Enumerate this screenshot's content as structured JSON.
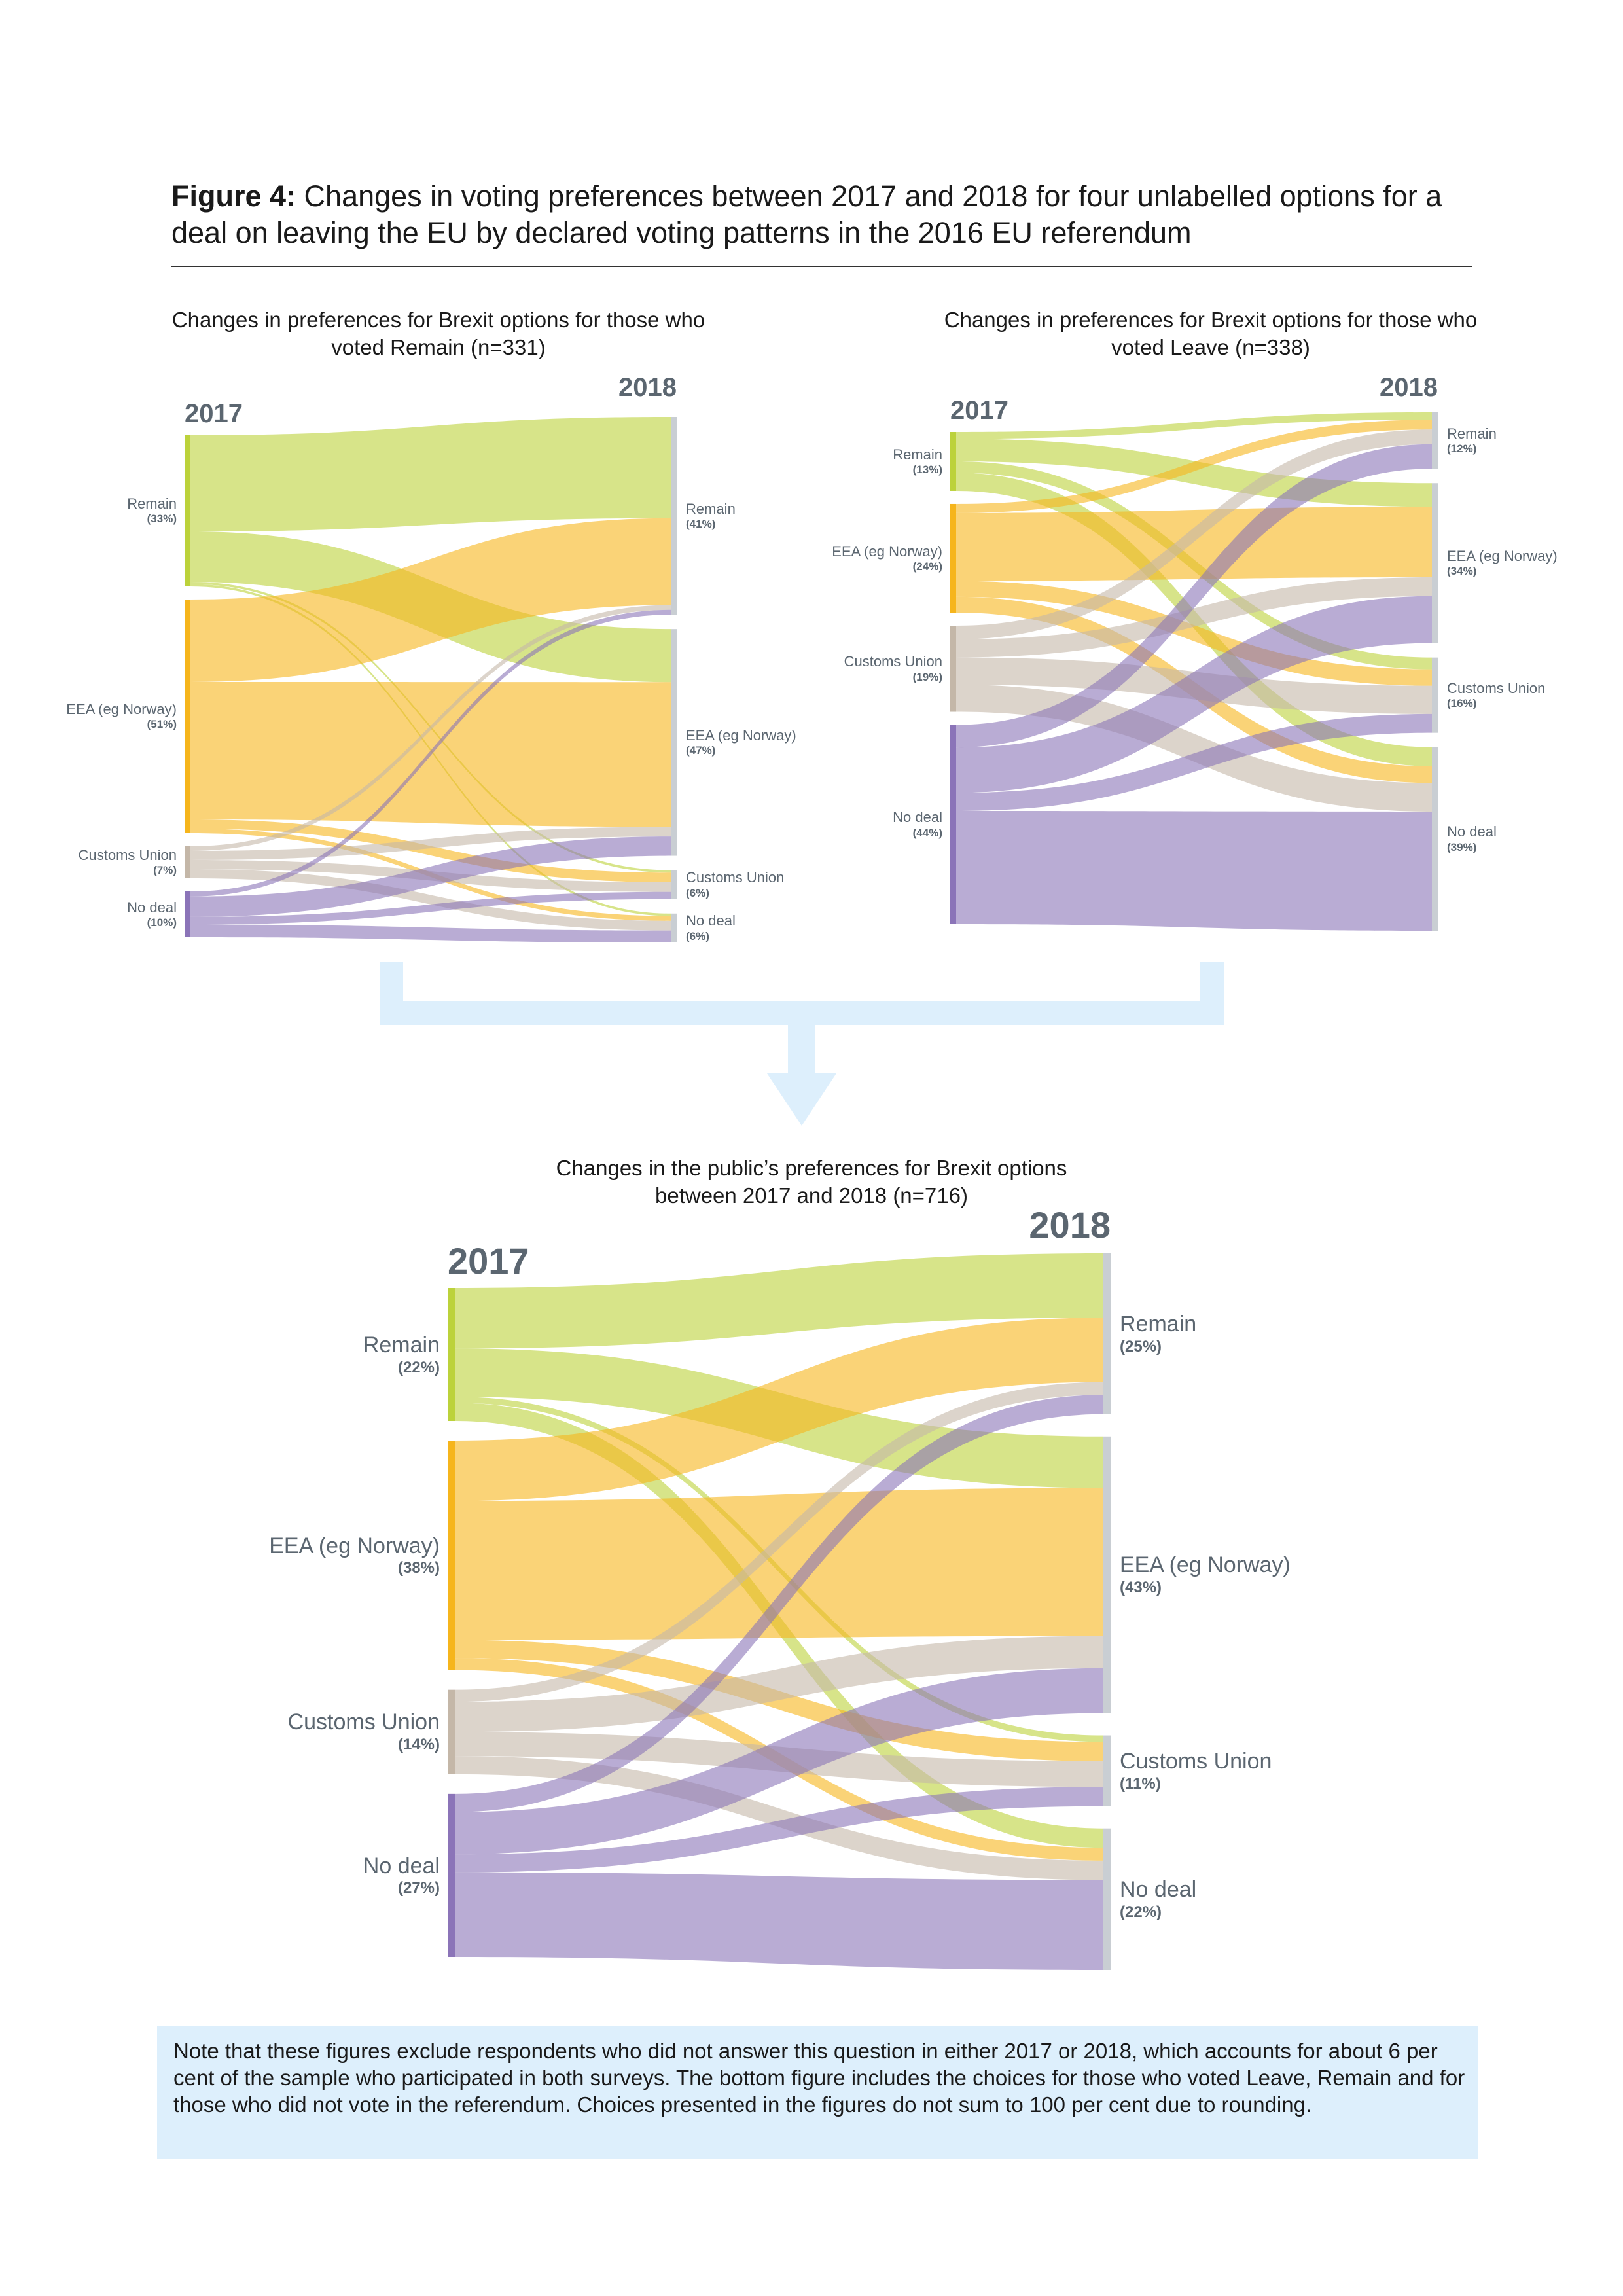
{
  "figure": {
    "label": "Figure 4:",
    "title": "Changes in voting preferences between 2017 and 2018 for four unlabelled options for a deal on leaving the EU by declared voting patterns in the 2016 EU referendum"
  },
  "note": "Note that these figures exclude respondents who did not answer this question in either 2017 or 2018, which accounts for about 6 per cent of the sample who participated in both surveys. The bottom figure includes the choices for those who voted Leave, Remain and for those who did not vote in the referendum. Choices presented in the figures do not sum to 100 per cent due to rounding.",
  "colors": {
    "Remain": "#bcd23b",
    "EEA (eg Norway)": "#f6b51c",
    "Customs Union": "#c4b7a8",
    "No deal": "#8b74b8",
    "target_bar": "#c9ced3",
    "connector": "#ddeffc"
  },
  "chart_data": [
    {
      "type": "sankey",
      "title": "Changes in preferences for Brexit options for those who voted Remain (n=331)",
      "source_year": "2017",
      "target_year": "2018",
      "source_nodes": [
        {
          "name": "Remain",
          "label": "(33%)",
          "value": 33
        },
        {
          "name": "EEA (eg Norway)",
          "label": "(51%)",
          "value": 51
        },
        {
          "name": "Customs Union",
          "label": "(7%)",
          "value": 7
        },
        {
          "name": "No deal",
          "label": "(10%)",
          "value": 10
        }
      ],
      "target_nodes": [
        {
          "name": "Remain",
          "label": "(41%)",
          "value": 41
        },
        {
          "name": "EEA (eg Norway)",
          "label": "(47%)",
          "value": 47
        },
        {
          "name": "Customs Union",
          "label": "(6%)",
          "value": 6
        },
        {
          "name": "No deal",
          "label": "(6%)",
          "value": 6
        }
      ],
      "flows": [
        {
          "source": "Remain",
          "target": "Remain",
          "value": 21
        },
        {
          "source": "Remain",
          "target": "EEA (eg Norway)",
          "value": 11
        },
        {
          "source": "Remain",
          "target": "Customs Union",
          "value": 0.5
        },
        {
          "source": "Remain",
          "target": "No deal",
          "value": 0.5
        },
        {
          "source": "EEA (eg Norway)",
          "target": "Remain",
          "value": 18
        },
        {
          "source": "EEA (eg Norway)",
          "target": "EEA (eg Norway)",
          "value": 30
        },
        {
          "source": "EEA (eg Norway)",
          "target": "Customs Union",
          "value": 2
        },
        {
          "source": "EEA (eg Norway)",
          "target": "No deal",
          "value": 1
        },
        {
          "source": "Customs Union",
          "target": "Remain",
          "value": 1
        },
        {
          "source": "Customs Union",
          "target": "EEA (eg Norway)",
          "value": 2
        },
        {
          "source": "Customs Union",
          "target": "Customs Union",
          "value": 2
        },
        {
          "source": "Customs Union",
          "target": "No deal",
          "value": 2
        },
        {
          "source": "No deal",
          "target": "Remain",
          "value": 1
        },
        {
          "source": "No deal",
          "target": "EEA (eg Norway)",
          "value": 4
        },
        {
          "source": "No deal",
          "target": "Customs Union",
          "value": 1.5
        },
        {
          "source": "No deal",
          "target": "No deal",
          "value": 2.5
        }
      ]
    },
    {
      "type": "sankey",
      "title": "Changes in preferences for Brexit options for those who voted Leave (n=338)",
      "source_year": "2017",
      "target_year": "2018",
      "source_nodes": [
        {
          "name": "Remain",
          "label": "(13%)",
          "value": 13
        },
        {
          "name": "EEA (eg Norway)",
          "label": "(24%)",
          "value": 24
        },
        {
          "name": "Customs Union",
          "label": "(19%)",
          "value": 19
        },
        {
          "name": "No deal",
          "label": "(44%)",
          "value": 44
        }
      ],
      "target_nodes": [
        {
          "name": "Remain",
          "label": "(12%)",
          "value": 12
        },
        {
          "name": "EEA (eg Norway)",
          "label": "(34%)",
          "value": 34
        },
        {
          "name": "Customs Union",
          "label": "(16%)",
          "value": 16
        },
        {
          "name": "No deal",
          "label": "(39%)",
          "value": 39
        }
      ],
      "flows": [
        {
          "source": "Remain",
          "target": "Remain",
          "value": 1.5
        },
        {
          "source": "Remain",
          "target": "EEA (eg Norway)",
          "value": 5
        },
        {
          "source": "Remain",
          "target": "Customs Union",
          "value": 2.5
        },
        {
          "source": "Remain",
          "target": "No deal",
          "value": 4
        },
        {
          "source": "EEA (eg Norway)",
          "target": "Remain",
          "value": 2
        },
        {
          "source": "EEA (eg Norway)",
          "target": "EEA (eg Norway)",
          "value": 15
        },
        {
          "source": "EEA (eg Norway)",
          "target": "Customs Union",
          "value": 3.5
        },
        {
          "source": "EEA (eg Norway)",
          "target": "No deal",
          "value": 3.5
        },
        {
          "source": "Customs Union",
          "target": "Remain",
          "value": 3
        },
        {
          "source": "Customs Union",
          "target": "EEA (eg Norway)",
          "value": 4
        },
        {
          "source": "Customs Union",
          "target": "Customs Union",
          "value": 6
        },
        {
          "source": "Customs Union",
          "target": "No deal",
          "value": 6
        },
        {
          "source": "No deal",
          "target": "Remain",
          "value": 5
        },
        {
          "source": "No deal",
          "target": "EEA (eg Norway)",
          "value": 10
        },
        {
          "source": "No deal",
          "target": "Customs Union",
          "value": 4
        },
        {
          "source": "No deal",
          "target": "No deal",
          "value": 25
        }
      ]
    },
    {
      "type": "sankey",
      "title": "Changes in the public’s preferences for Brexit options between 2017 and 2018 (n=716)",
      "source_year": "2017",
      "target_year": "2018",
      "source_nodes": [
        {
          "name": "Remain",
          "label": "(22%)",
          "value": 22
        },
        {
          "name": "EEA (eg Norway)",
          "label": "(38%)",
          "value": 38
        },
        {
          "name": "Customs Union",
          "label": "(14%)",
          "value": 14
        },
        {
          "name": "No deal",
          "label": "(27%)",
          "value": 27
        }
      ],
      "target_nodes": [
        {
          "name": "Remain",
          "label": "(25%)",
          "value": 25
        },
        {
          "name": "EEA (eg Norway)",
          "label": "(43%)",
          "value": 43
        },
        {
          "name": "Customs Union",
          "label": "(11%)",
          "value": 11
        },
        {
          "name": "No deal",
          "label": "(22%)",
          "value": 22
        }
      ],
      "flows": [
        {
          "source": "Remain",
          "target": "Remain",
          "value": 10
        },
        {
          "source": "Remain",
          "target": "EEA (eg Norway)",
          "value": 8
        },
        {
          "source": "Remain",
          "target": "Customs Union",
          "value": 1
        },
        {
          "source": "Remain",
          "target": "No deal",
          "value": 3
        },
        {
          "source": "EEA (eg Norway)",
          "target": "Remain",
          "value": 10
        },
        {
          "source": "EEA (eg Norway)",
          "target": "EEA (eg Norway)",
          "value": 23
        },
        {
          "source": "EEA (eg Norway)",
          "target": "Customs Union",
          "value": 3
        },
        {
          "source": "EEA (eg Norway)",
          "target": "No deal",
          "value": 2
        },
        {
          "source": "Customs Union",
          "target": "Remain",
          "value": 2
        },
        {
          "source": "Customs Union",
          "target": "EEA (eg Norway)",
          "value": 5
        },
        {
          "source": "Customs Union",
          "target": "Customs Union",
          "value": 4
        },
        {
          "source": "Customs Union",
          "target": "No deal",
          "value": 3
        },
        {
          "source": "No deal",
          "target": "Remain",
          "value": 3
        },
        {
          "source": "No deal",
          "target": "EEA (eg Norway)",
          "value": 7
        },
        {
          "source": "No deal",
          "target": "Customs Union",
          "value": 3
        },
        {
          "source": "No deal",
          "target": "No deal",
          "value": 14
        }
      ]
    }
  ]
}
